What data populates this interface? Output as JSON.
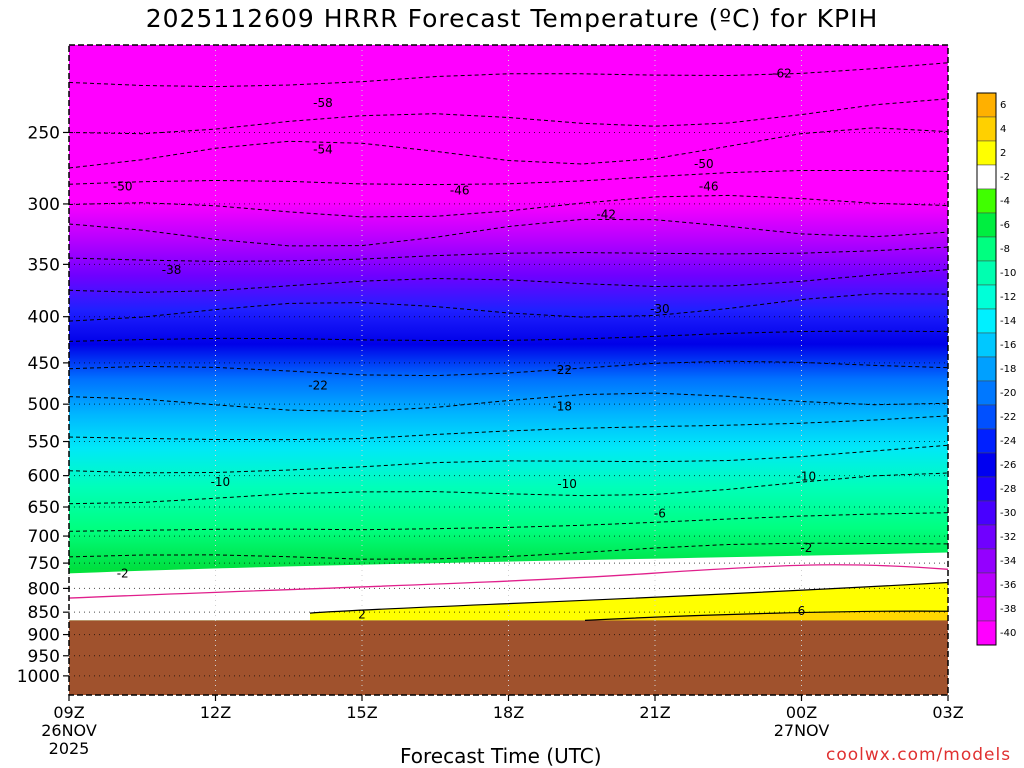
{
  "chart_data": {
    "type": "heatmap",
    "title": "2025112609 HRRR Forecast Temperature (ºC) for KPIH",
    "xlabel": "Forecast Time (UTC)",
    "credit": "coolwx.com/models",
    "x_ticks": [
      {
        "h": 0,
        "label": "09Z",
        "sub1": "26NOV",
        "sub2": "2025"
      },
      {
        "h": 3,
        "label": "12Z",
        "sub1": "",
        "sub2": ""
      },
      {
        "h": 6,
        "label": "15Z",
        "sub1": "",
        "sub2": ""
      },
      {
        "h": 9,
        "label": "18Z",
        "sub1": "",
        "sub2": ""
      },
      {
        "h": 12,
        "label": "21Z",
        "sub1": "",
        "sub2": ""
      },
      {
        "h": 15,
        "label": "00Z",
        "sub1": "27NOV",
        "sub2": ""
      },
      {
        "h": 18,
        "label": "03Z",
        "sub1": "",
        "sub2": ""
      }
    ],
    "y_ticks": [
      "250",
      "300",
      "350",
      "400",
      "450",
      "500",
      "550",
      "600",
      "650",
      "700",
      "750",
      "800",
      "850",
      "900",
      "950",
      "1000"
    ],
    "ylim_hpa": [
      200,
      1050
    ],
    "ground_pressure_hpa": 868,
    "colorbar": {
      "levels": [
        "6",
        "4",
        "2",
        "-2",
        "-4",
        "-6",
        "-8",
        "-10",
        "-12",
        "-14",
        "-16",
        "-18",
        "-20",
        "-22",
        "-24",
        "-26",
        "-28",
        "-30",
        "-32",
        "-34",
        "-36",
        "-38",
        "-40"
      ],
      "colors": [
        "#ffb000",
        "#ffd000",
        "#ffff00",
        "#ffffff",
        "#40ff00",
        "#00ee40",
        "#00ff80",
        "#00ffb0",
        "#00ffd8",
        "#00f0ff",
        "#00c8ff",
        "#00a0ff",
        "#0078ff",
        "#0050ff",
        "#0020ff",
        "#0000f0",
        "#2000ff",
        "#4800ff",
        "#7000ff",
        "#9400ff",
        "#b800ff",
        "#dc00ff",
        "#ff00ff"
      ]
    },
    "contour_labels": [
      {
        "text": "-62",
        "h": 14.6,
        "p": 215
      },
      {
        "text": "-58",
        "h": 5.2,
        "p": 232
      },
      {
        "text": "-54",
        "h": 5.2,
        "p": 261
      },
      {
        "text": "-50",
        "h": 1.1,
        "p": 287
      },
      {
        "text": "-50",
        "h": 13.0,
        "p": 271
      },
      {
        "text": "-46",
        "h": 8.0,
        "p": 290
      },
      {
        "text": "-46",
        "h": 13.1,
        "p": 287
      },
      {
        "text": "-42",
        "h": 11.0,
        "p": 308
      },
      {
        "text": "-38",
        "h": 2.1,
        "p": 355
      },
      {
        "text": "-30",
        "h": 12.1,
        "p": 392
      },
      {
        "text": "-22",
        "h": 5.1,
        "p": 477
      },
      {
        "text": "-22",
        "h": 10.1,
        "p": 458
      },
      {
        "text": "-18",
        "h": 10.1,
        "p": 503
      },
      {
        "text": "-10",
        "h": 3.1,
        "p": 610
      },
      {
        "text": "-10",
        "h": 10.2,
        "p": 613
      },
      {
        "text": "-10",
        "h": 15.1,
        "p": 601
      },
      {
        "text": "-6",
        "h": 12.1,
        "p": 661
      },
      {
        "text": "-2",
        "h": 1.1,
        "p": 770
      },
      {
        "text": "-2",
        "h": 15.1,
        "p": 722
      },
      {
        "text": "2",
        "h": 6.0,
        "p": 855
      },
      {
        "text": "6",
        "h": 15.0,
        "p": 848
      }
    ]
  }
}
